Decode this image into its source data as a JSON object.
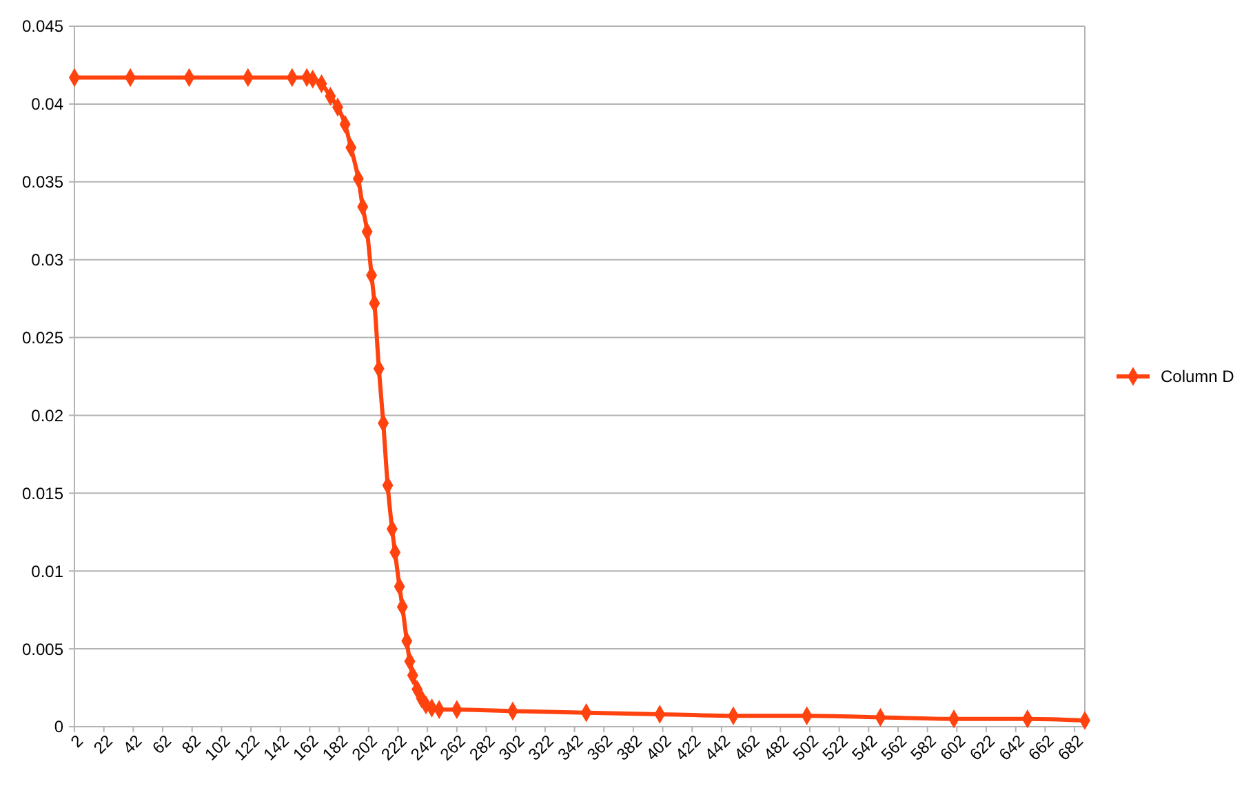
{
  "chart_data": {
    "type": "line",
    "x": [
      2,
      40,
      80,
      120,
      150,
      160,
      164,
      170,
      176,
      181,
      186,
      190,
      195,
      198,
      201,
      204,
      206,
      209,
      212,
      215,
      218,
      220,
      223,
      225,
      228,
      230,
      232,
      235,
      238,
      241,
      245,
      250,
      262,
      300,
      350,
      400,
      450,
      500,
      550,
      600,
      650,
      689
    ],
    "series": [
      {
        "name": "Column D",
        "color": "#ff420e",
        "values": [
          0.0417,
          0.0417,
          0.0417,
          0.0417,
          0.0417,
          0.0417,
          0.0416,
          0.0413,
          0.0405,
          0.0398,
          0.0387,
          0.0372,
          0.0352,
          0.0334,
          0.0318,
          0.029,
          0.0272,
          0.023,
          0.0195,
          0.0155,
          0.0127,
          0.0112,
          0.009,
          0.0077,
          0.0055,
          0.0042,
          0.0033,
          0.0024,
          0.0018,
          0.0014,
          0.0012,
          0.0011,
          0.0011,
          0.001,
          0.0009,
          0.0008,
          0.0007,
          0.0007,
          0.0006,
          0.0005,
          0.0005,
          0.0004
        ]
      }
    ],
    "xlim": [
      2,
      689
    ],
    "xticks": [
      2,
      22,
      42,
      62,
      82,
      102,
      122,
      142,
      162,
      182,
      202,
      222,
      242,
      262,
      282,
      302,
      322,
      342,
      362,
      382,
      402,
      422,
      442,
      462,
      482,
      502,
      522,
      542,
      562,
      582,
      602,
      622,
      642,
      662,
      682
    ],
    "ylim": [
      0,
      0.045
    ],
    "yticks": [
      0,
      0.005,
      0.01,
      0.015,
      0.02,
      0.025,
      0.03,
      0.035,
      0.04,
      0.045
    ],
    "grid": "y",
    "legend": "right",
    "marker": "diamond",
    "line_style": "solid"
  }
}
